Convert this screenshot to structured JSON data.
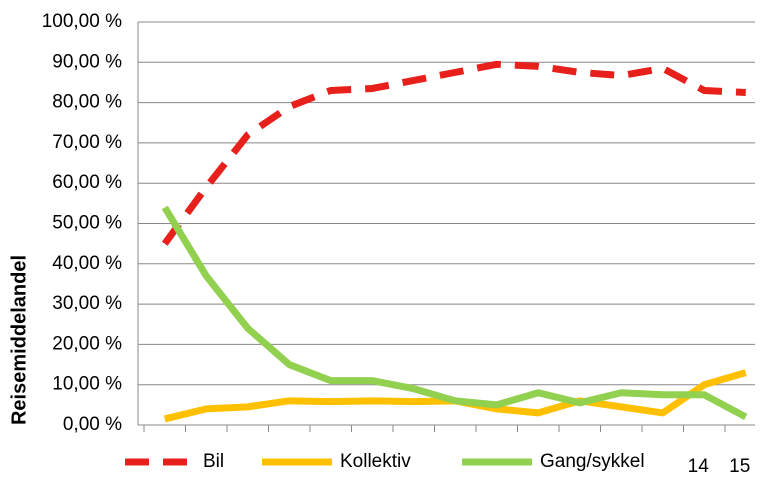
{
  "chart_data": {
    "type": "line",
    "y_label": "Reisemiddelandel",
    "categories": [
      null,
      null,
      null,
      null,
      null,
      null,
      null,
      null,
      null,
      null,
      null,
      null,
      null,
      "14",
      "15"
    ],
    "series": [
      {
        "name": "Bil",
        "color": "#e8201c",
        "dashed": true,
        "values": [
          45,
          59,
          72,
          79,
          83,
          83.5,
          85.5,
          87.5,
          89.5,
          89,
          87.5,
          86.7,
          88.5,
          83,
          82.5
        ]
      },
      {
        "name": "Kollektiv",
        "color": "#ffc000",
        "dashed": false,
        "values": [
          1.5,
          4,
          4.5,
          6,
          5.8,
          6,
          5.8,
          6,
          4,
          3,
          6,
          4.5,
          3,
          10,
          13
        ]
      },
      {
        "name": "Gang/sykkel",
        "color": "#92d050",
        "dashed": false,
        "values": [
          54,
          37,
          24,
          15,
          11,
          11,
          9,
          6,
          5,
          8,
          5.5,
          8,
          7.5,
          7.5,
          2
        ]
      }
    ],
    "ylim": [
      0,
      100
    ],
    "yticks": [
      {
        "value": 0,
        "label": "0,00 %"
      },
      {
        "value": 10,
        "label": "10,00 %"
      },
      {
        "value": 20,
        "label": "20,00 %"
      },
      {
        "value": 30,
        "label": "30,00 %"
      },
      {
        "value": 40,
        "label": "40,00 %"
      },
      {
        "value": 50,
        "label": "50,00 %"
      },
      {
        "value": 60,
        "label": "60,00 %"
      },
      {
        "value": 70,
        "label": "70,00 %"
      },
      {
        "value": 80,
        "label": "80,00 %"
      },
      {
        "value": 90,
        "label": "90,00 %"
      },
      {
        "value": 100,
        "label": "100,00 %"
      }
    ],
    "grid": true,
    "legend": "bottom"
  }
}
